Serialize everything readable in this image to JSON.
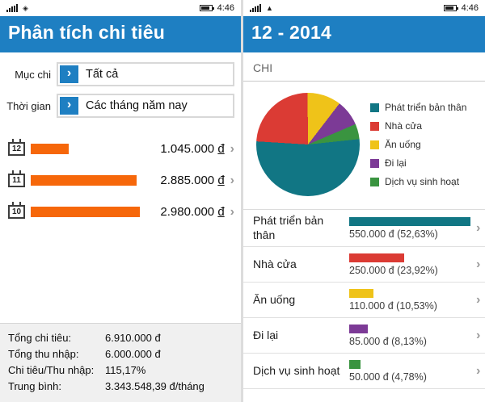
{
  "colors": {
    "accent_blue": "#1e7fc2",
    "bar_orange": "#f6670a",
    "teal": "#117684",
    "red": "#db3b34",
    "yellow": "#efc319",
    "purple": "#7c3a96",
    "green": "#3a9440"
  },
  "icons": {
    "chevron_right": "›",
    "dropdown_arrow": "›"
  },
  "left": {
    "statusbar": {
      "time": "4:46"
    },
    "header": {
      "title": "Phân tích chi tiêu"
    },
    "filters": [
      {
        "label": "Mục chi",
        "value": "Tất cả"
      },
      {
        "label": "Thời gian",
        "value": "Các tháng năm nay"
      }
    ],
    "months": [
      {
        "label": "12",
        "amount": "1.045.000",
        "currency": "đ",
        "bar_pct": 35
      },
      {
        "label": "11",
        "amount": "2.885.000",
        "currency": "đ",
        "bar_pct": 97
      },
      {
        "label": "10",
        "amount": "2.980.000",
        "currency": "đ",
        "bar_pct": 100
      }
    ],
    "summary": [
      {
        "label": "Tổng chi tiêu:",
        "value": "6.910.000 đ"
      },
      {
        "label": "Tổng thu nhập:",
        "value": "6.000.000 đ"
      },
      {
        "label": "Chi tiêu/Thu nhập:",
        "value": "115,17%"
      },
      {
        "label": "Trung bình:",
        "value": "3.343.548,39 đ/tháng"
      }
    ]
  },
  "right": {
    "statusbar": {
      "time": "4:46"
    },
    "header": {
      "title": "12 - 2014"
    },
    "section_label": "CHI",
    "categories": [
      {
        "name": "Phát triển bản thân",
        "amount": "550.000 đ  (52,63%)",
        "color": "#117684",
        "bar_pct": 100
      },
      {
        "name": "Nhà cửa",
        "amount": "250.000 đ  (23,92%)",
        "color": "#db3b34",
        "bar_pct": 45.5
      },
      {
        "name": "Ăn uống",
        "amount": "110.000 đ  (10,53%)",
        "color": "#efc319",
        "bar_pct": 20
      },
      {
        "name": "Đi lại",
        "amount": "85.000 đ  (8,13%)",
        "color": "#7c3a96",
        "bar_pct": 15.5
      },
      {
        "name": "Dịch vụ sinh hoạt",
        "amount": "50.000 đ  (4,78%)",
        "color": "#3a9440",
        "bar_pct": 9.1
      }
    ]
  },
  "chart_data": [
    {
      "type": "pie",
      "title": "CHI",
      "subtitle": "12 - 2014",
      "labels": [
        "Phát triển bản thân",
        "Nhà cửa",
        "Ăn uống",
        "Đi lại",
        "Dịch vụ sinh hoạt"
      ],
      "values": [
        550000,
        250000,
        110000,
        85000,
        50000
      ],
      "percentages": [
        52.63,
        23.92,
        10.53,
        8.13,
        4.78
      ],
      "colors": [
        "#117684",
        "#db3b34",
        "#efc319",
        "#7c3a96",
        "#3a9440"
      ],
      "legend_position": "right",
      "start_angle_deg": 84
    },
    {
      "type": "bar",
      "orientation": "horizontal",
      "title": "Phân tích chi tiêu",
      "categories": [
        "12",
        "11",
        "10"
      ],
      "values": [
        1045000,
        2885000,
        2980000
      ],
      "bar_color": "#f6670a",
      "value_labels": [
        "1.045.000 đ",
        "2.885.000 đ",
        "2.980.000 đ"
      ]
    }
  ]
}
